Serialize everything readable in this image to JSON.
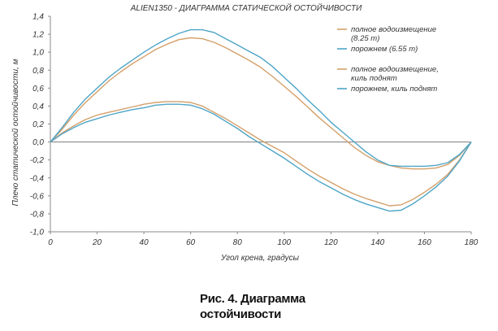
{
  "chart_data": {
    "type": "line",
    "title": "ALIEN1350 - ДИАГРАММА СТАТИЧЕСКОЙ ОСТОЙЧИВОСТИ",
    "xlabel": "Угол крена, градусы",
    "ylabel": "Плечо статической остойчивости, м",
    "xlim": [
      0,
      180
    ],
    "ylim": [
      -1.0,
      1.4
    ],
    "x_ticks": [
      0,
      20,
      40,
      60,
      80,
      100,
      120,
      140,
      160,
      180
    ],
    "x_tick_labels": [
      "0",
      "20",
      "40",
      "60",
      "80",
      "100",
      "120",
      "140",
      "160",
      "180"
    ],
    "y_ticks": [
      -1.0,
      -0.8,
      -0.6,
      -0.4,
      -0.2,
      0.0,
      0.2,
      0.4,
      0.6,
      0.8,
      1.0,
      1.2,
      1.4
    ],
    "y_tick_labels": [
      "-1,0",
      "-0,8",
      "-0,6",
      "-0,4",
      "-0,2",
      "0,0",
      "0,2",
      "0,4",
      "0,6",
      "0,8",
      "1,0",
      "1,2",
      "1,4"
    ],
    "grid": false,
    "legend_position": "top-right",
    "series": [
      {
        "name_lines": [
          "полное водоизмещение",
          "(8.25 т)"
        ],
        "color": "#d4a06a",
        "points": [
          [
            0,
            0
          ],
          [
            5,
            0.14
          ],
          [
            10,
            0.3
          ],
          [
            15,
            0.44
          ],
          [
            20,
            0.56
          ],
          [
            25,
            0.68
          ],
          [
            30,
            0.78
          ],
          [
            35,
            0.87
          ],
          [
            40,
            0.95
          ],
          [
            45,
            1.03
          ],
          [
            50,
            1.09
          ],
          [
            55,
            1.14
          ],
          [
            60,
            1.16
          ],
          [
            65,
            1.15
          ],
          [
            70,
            1.11
          ],
          [
            75,
            1.05
          ],
          [
            80,
            0.98
          ],
          [
            85,
            0.91
          ],
          [
            90,
            0.83
          ],
          [
            95,
            0.73
          ],
          [
            100,
            0.62
          ],
          [
            105,
            0.51
          ],
          [
            110,
            0.39
          ],
          [
            115,
            0.27
          ],
          [
            120,
            0.16
          ],
          [
            125,
            0.05
          ],
          [
            130,
            -0.06
          ],
          [
            135,
            -0.15
          ],
          [
            140,
            -0.22
          ],
          [
            145,
            -0.26
          ],
          [
            150,
            -0.29
          ],
          [
            155,
            -0.3
          ],
          [
            160,
            -0.3
          ],
          [
            165,
            -0.29
          ],
          [
            170,
            -0.25
          ],
          [
            175,
            -0.15
          ],
          [
            180,
            0
          ]
        ]
      },
      {
        "name_lines": [
          "порожнем (6.55 т)"
        ],
        "color": "#4ea5c7",
        "points": [
          [
            0,
            0
          ],
          [
            5,
            0.16
          ],
          [
            10,
            0.33
          ],
          [
            15,
            0.48
          ],
          [
            20,
            0.6
          ],
          [
            25,
            0.72
          ],
          [
            30,
            0.82
          ],
          [
            35,
            0.91
          ],
          [
            40,
            1.0
          ],
          [
            45,
            1.08
          ],
          [
            50,
            1.15
          ],
          [
            55,
            1.21
          ],
          [
            60,
            1.25
          ],
          [
            65,
            1.25
          ],
          [
            70,
            1.22
          ],
          [
            75,
            1.15
          ],
          [
            80,
            1.08
          ],
          [
            85,
            1.01
          ],
          [
            90,
            0.94
          ],
          [
            95,
            0.84
          ],
          [
            100,
            0.72
          ],
          [
            105,
            0.6
          ],
          [
            110,
            0.47
          ],
          [
            115,
            0.35
          ],
          [
            120,
            0.22
          ],
          [
            125,
            0.11
          ],
          [
            130,
            -0.0
          ],
          [
            135,
            -0.11
          ],
          [
            140,
            -0.2
          ],
          [
            145,
            -0.26
          ],
          [
            150,
            -0.27
          ],
          [
            155,
            -0.27
          ],
          [
            160,
            -0.27
          ],
          [
            165,
            -0.26
          ],
          [
            170,
            -0.23
          ],
          [
            175,
            -0.14
          ],
          [
            180,
            0
          ]
        ]
      },
      {
        "name_lines": [
          "полное водоизмещение,",
          "киль поднят"
        ],
        "color": "#d4a06a",
        "points": [
          [
            0,
            0
          ],
          [
            5,
            0.1
          ],
          [
            10,
            0.18
          ],
          [
            15,
            0.25
          ],
          [
            20,
            0.3
          ],
          [
            25,
            0.33
          ],
          [
            30,
            0.36
          ],
          [
            35,
            0.39
          ],
          [
            40,
            0.42
          ],
          [
            45,
            0.44
          ],
          [
            50,
            0.45
          ],
          [
            55,
            0.45
          ],
          [
            60,
            0.44
          ],
          [
            65,
            0.4
          ],
          [
            70,
            0.33
          ],
          [
            75,
            0.26
          ],
          [
            80,
            0.18
          ],
          [
            85,
            0.1
          ],
          [
            90,
            0.02
          ],
          [
            95,
            -0.05
          ],
          [
            100,
            -0.12
          ],
          [
            105,
            -0.21
          ],
          [
            110,
            -0.3
          ],
          [
            115,
            -0.38
          ],
          [
            120,
            -0.45
          ],
          [
            125,
            -0.52
          ],
          [
            130,
            -0.58
          ],
          [
            135,
            -0.63
          ],
          [
            140,
            -0.67
          ],
          [
            145,
            -0.71
          ],
          [
            150,
            -0.7
          ],
          [
            155,
            -0.64
          ],
          [
            160,
            -0.56
          ],
          [
            165,
            -0.47
          ],
          [
            170,
            -0.36
          ],
          [
            175,
            -0.2
          ],
          [
            180,
            0
          ]
        ]
      },
      {
        "name_lines": [
          "порожнем, киль поднят"
        ],
        "color": "#4ea5c7",
        "points": [
          [
            0,
            0
          ],
          [
            5,
            0.09
          ],
          [
            10,
            0.16
          ],
          [
            15,
            0.22
          ],
          [
            20,
            0.26
          ],
          [
            25,
            0.3
          ],
          [
            30,
            0.33
          ],
          [
            35,
            0.36
          ],
          [
            40,
            0.38
          ],
          [
            45,
            0.41
          ],
          [
            50,
            0.42
          ],
          [
            55,
            0.42
          ],
          [
            60,
            0.41
          ],
          [
            65,
            0.37
          ],
          [
            70,
            0.31
          ],
          [
            75,
            0.23
          ],
          [
            80,
            0.15
          ],
          [
            85,
            0.06
          ],
          [
            90,
            -0.02
          ],
          [
            95,
            -0.1
          ],
          [
            100,
            -0.18
          ],
          [
            105,
            -0.27
          ],
          [
            110,
            -0.36
          ],
          [
            115,
            -0.44
          ],
          [
            120,
            -0.51
          ],
          [
            125,
            -0.58
          ],
          [
            130,
            -0.64
          ],
          [
            135,
            -0.69
          ],
          [
            140,
            -0.73
          ],
          [
            145,
            -0.77
          ],
          [
            150,
            -0.76
          ],
          [
            155,
            -0.69
          ],
          [
            160,
            -0.6
          ],
          [
            165,
            -0.5
          ],
          [
            170,
            -0.38
          ],
          [
            175,
            -0.21
          ],
          [
            180,
            0
          ]
        ]
      }
    ]
  },
  "caption": {
    "line1": "Рис. 4. Диаграмма",
    "line2": "остойчивости"
  },
  "colors": {
    "axis": "#8a8a8a",
    "zero_line": "#8a8a8a"
  }
}
